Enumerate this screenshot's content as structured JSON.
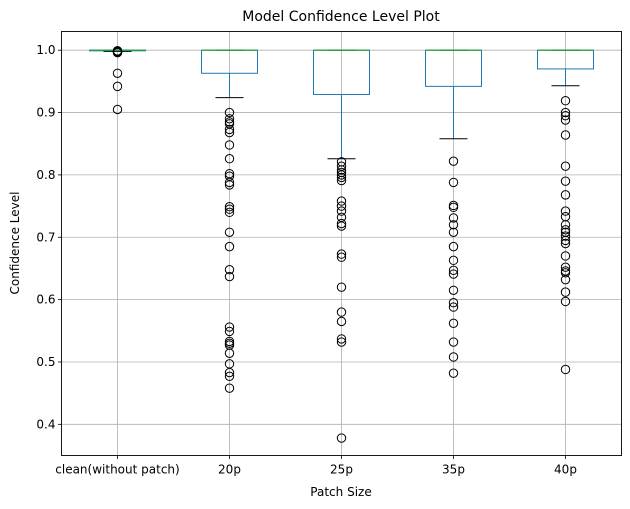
{
  "chart_data": {
    "type": "box",
    "title": "Model Confidence Level Plot",
    "xlabel": "Patch Size",
    "ylabel": "Confidence Level",
    "ylim": [
      0.35,
      1.03
    ],
    "yticks": [
      "0.4",
      "0.5",
      "0.6",
      "0.7",
      "0.8",
      "0.9",
      "1.0"
    ],
    "grid": true,
    "colors": {
      "box": "#1f77b4",
      "median": "#2ca02c",
      "whisker_cap": "#000000",
      "flier": "#000000",
      "grid": "#b0b0b0"
    },
    "categories": [
      "clean(without patch)",
      "20p",
      "25p",
      "35p",
      "40p"
    ],
    "boxes": [
      {
        "label": "clean(without patch)",
        "q1": 0.999,
        "median": 1.0,
        "q3": 1.0,
        "whisker_low": 0.998,
        "whisker_high": 1.0,
        "fliers": [
          0.996,
          0.997,
          0.998,
          0.999,
          0.999,
          0.963,
          0.942,
          0.905
        ]
      },
      {
        "label": "20p",
        "q1": 0.963,
        "median": 1.0,
        "q3": 1.0,
        "whisker_low": 0.924,
        "whisker_high": 1.0,
        "fliers": [
          0.9,
          0.89,
          0.885,
          0.882,
          0.873,
          0.868,
          0.848,
          0.826,
          0.802,
          0.798,
          0.788,
          0.784,
          0.749,
          0.745,
          0.74,
          0.708,
          0.685,
          0.648,
          0.637,
          0.556,
          0.549,
          0.533,
          0.53,
          0.527,
          0.514,
          0.497,
          0.483,
          0.477,
          0.458
        ]
      },
      {
        "label": "25p",
        "q1": 0.929,
        "median": 1.0,
        "q3": 1.0,
        "whisker_low": 0.826,
        "whisker_high": 1.0,
        "fliers": [
          0.821,
          0.814,
          0.808,
          0.804,
          0.8,
          0.796,
          0.791,
          0.758,
          0.75,
          0.742,
          0.732,
          0.722,
          0.718,
          0.673,
          0.668,
          0.62,
          0.58,
          0.565,
          0.537,
          0.532,
          0.378
        ]
      },
      {
        "label": "35p",
        "q1": 0.942,
        "median": 1.0,
        "q3": 1.0,
        "whisker_low": 0.858,
        "whisker_high": 1.0,
        "fliers": [
          0.822,
          0.788,
          0.751,
          0.748,
          0.731,
          0.72,
          0.708,
          0.685,
          0.663,
          0.647,
          0.641,
          0.615,
          0.595,
          0.588,
          0.562,
          0.532,
          0.508,
          0.482
        ]
      },
      {
        "label": "40p",
        "q1": 0.97,
        "median": 1.0,
        "q3": 1.0,
        "whisker_low": 0.943,
        "whisker_high": 1.0,
        "fliers": [
          0.919,
          0.9,
          0.895,
          0.888,
          0.864,
          0.814,
          0.79,
          0.768,
          0.742,
          0.733,
          0.72,
          0.712,
          0.708,
          0.702,
          0.695,
          0.69,
          0.67,
          0.652,
          0.646,
          0.643,
          0.632,
          0.612,
          0.597,
          0.488
        ]
      }
    ]
  }
}
